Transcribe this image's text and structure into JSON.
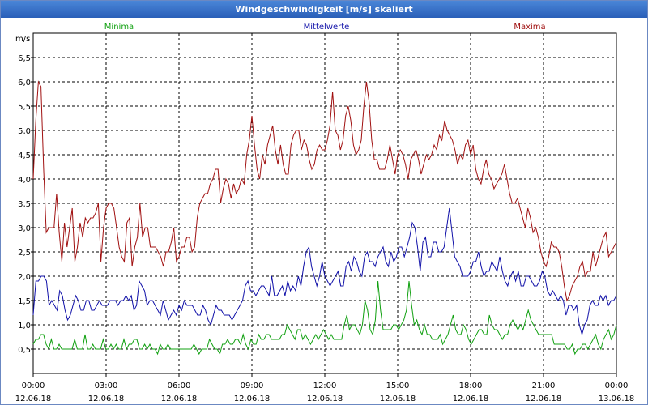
{
  "window": {
    "title": "Windgeschwindigkeit [m/s] skaliert"
  },
  "chart_data": {
    "type": "line",
    "title": "Windgeschwindigkeit [m/s] skaliert",
    "ylabel": "m/s",
    "xlabel": "",
    "ylim": [
      0,
      7.0
    ],
    "grid": true,
    "y_ticks": [
      "0,5",
      "1,0",
      "1,5",
      "2,0",
      "2,5",
      "3,0",
      "3,5",
      "4,0",
      "4,5",
      "5,0",
      "5,5",
      "6,0",
      "6,5"
    ],
    "x_ticks": [
      {
        "time": "00:00",
        "date": "12.06.18"
      },
      {
        "time": "03:00",
        "date": "12.06.18"
      },
      {
        "time": "06:00",
        "date": "12.06.18"
      },
      {
        "time": "09:00",
        "date": "12.06.18"
      },
      {
        "time": "12:00",
        "date": "12.06.18"
      },
      {
        "time": "15:00",
        "date": "12.06.18"
      },
      {
        "time": "18:00",
        "date": "12.06.18"
      },
      {
        "time": "21:00",
        "date": "12.06.18"
      },
      {
        "time": "00:00",
        "date": "13.06.18"
      }
    ],
    "x_range_hours": [
      0,
      24
    ],
    "series": [
      {
        "name": "Minima",
        "color": "#10a010",
        "values": [
          0.6,
          0.7,
          0.7,
          0.8,
          0.8,
          0.6,
          0.5,
          0.7,
          0.5,
          0.5,
          0.6,
          0.5,
          0.5,
          0.5,
          0.5,
          0.5,
          0.7,
          0.5,
          0.5,
          0.5,
          0.8,
          0.5,
          0.5,
          0.6,
          0.5,
          0.5,
          0.5,
          0.7,
          0.5,
          0.5,
          0.6,
          0.5,
          0.6,
          0.5,
          0.5,
          0.7,
          0.5,
          0.6,
          0.6,
          0.7,
          0.7,
          0.5,
          0.5,
          0.6,
          0.5,
          0.6,
          0.5,
          0.5,
          0.4,
          0.6,
          0.5,
          0.5,
          0.6,
          0.5,
          0.5,
          0.5,
          0.5,
          0.5,
          0.5,
          0.5,
          0.5,
          0.5,
          0.6,
          0.5,
          0.4,
          0.5,
          0.5,
          0.5,
          0.7,
          0.6,
          0.5,
          0.5,
          0.4,
          0.6,
          0.6,
          0.7,
          0.6,
          0.6,
          0.7,
          0.7,
          0.6,
          0.8,
          0.6,
          0.5,
          0.7,
          0.6,
          0.6,
          0.8,
          0.7,
          0.7,
          0.8,
          0.8,
          0.7,
          0.7,
          0.7,
          0.7,
          0.8,
          0.8,
          1.0,
          0.9,
          0.8,
          0.7,
          0.9,
          0.9,
          0.7,
          0.8,
          0.7,
          0.6,
          0.7,
          0.8,
          0.7,
          0.8,
          0.9,
          0.8,
          0.7,
          0.8,
          0.7,
          0.7,
          0.7,
          0.7,
          1.0,
          1.2,
          0.9,
          1.0,
          1.0,
          0.9,
          0.8,
          1.0,
          1.5,
          1.3,
          0.9,
          0.8,
          1.1,
          1.9,
          1.3,
          0.9,
          0.9,
          0.9,
          0.9,
          1.0,
          1.0,
          0.9,
          1.0,
          1.1,
          1.3,
          1.9,
          1.4,
          1.0,
          1.1,
          0.9,
          0.8,
          1.0,
          0.8,
          0.8,
          0.7,
          0.7,
          0.7,
          0.8,
          0.6,
          0.7,
          0.8,
          1.0,
          1.2,
          0.9,
          0.8,
          0.8,
          1.0,
          0.9,
          0.7,
          0.6,
          0.7,
          0.8,
          0.9,
          0.9,
          0.8,
          0.8,
          1.2,
          1.0,
          0.9,
          0.9,
          0.8,
          0.7,
          0.8,
          0.8,
          1.0,
          1.1,
          1.0,
          0.9,
          1.0,
          0.9,
          1.1,
          1.3,
          1.1,
          1.0,
          0.9,
          0.8,
          0.8,
          0.8,
          0.8,
          0.8,
          0.8,
          0.6,
          0.6,
          0.6,
          0.6,
          0.6,
          0.5,
          0.5,
          0.6,
          0.4,
          0.5,
          0.5,
          0.6,
          0.6,
          0.5,
          0.6,
          0.7,
          0.8,
          0.6,
          0.5,
          0.7,
          0.8,
          0.9,
          0.7,
          0.8,
          1.0
        ]
      },
      {
        "name": "Mittelwerte",
        "color": "#1010a8",
        "values": [
          1.2,
          1.9,
          1.9,
          2.0,
          2.0,
          1.9,
          1.4,
          1.5,
          1.4,
          1.3,
          1.7,
          1.6,
          1.3,
          1.1,
          1.2,
          1.4,
          1.6,
          1.5,
          1.3,
          1.3,
          1.5,
          1.5,
          1.3,
          1.3,
          1.4,
          1.5,
          1.4,
          1.4,
          1.4,
          1.5,
          1.5,
          1.5,
          1.4,
          1.5,
          1.5,
          1.6,
          1.5,
          1.6,
          1.3,
          1.4,
          1.9,
          1.8,
          1.7,
          1.4,
          1.5,
          1.5,
          1.4,
          1.3,
          1.2,
          1.5,
          1.3,
          1.1,
          1.2,
          1.3,
          1.2,
          1.4,
          1.3,
          1.5,
          1.4,
          1.4,
          1.4,
          1.3,
          1.2,
          1.2,
          1.4,
          1.3,
          1.1,
          1.0,
          1.2,
          1.4,
          1.3,
          1.3,
          1.2,
          1.2,
          1.2,
          1.1,
          1.2,
          1.3,
          1.4,
          1.5,
          1.8,
          1.9,
          1.7,
          1.7,
          1.6,
          1.7,
          1.8,
          1.8,
          1.7,
          1.6,
          2.0,
          1.6,
          1.6,
          1.7,
          1.8,
          1.6,
          1.9,
          1.7,
          1.8,
          1.7,
          2.0,
          1.8,
          2.2,
          2.5,
          2.6,
          2.2,
          2.0,
          1.8,
          2.0,
          2.3,
          2.0,
          1.9,
          1.8,
          1.9,
          2.0,
          2.1,
          1.8,
          1.8,
          2.2,
          2.3,
          2.1,
          2.4,
          2.3,
          2.1,
          2.0,
          2.4,
          2.5,
          2.3,
          2.3,
          2.2,
          2.4,
          2.5,
          2.6,
          2.3,
          2.2,
          2.5,
          2.3,
          2.4,
          2.6,
          2.6,
          2.4,
          2.6,
          2.8,
          3.1,
          3.0,
          2.6,
          2.1,
          2.7,
          2.8,
          2.4,
          2.4,
          2.7,
          2.7,
          2.5,
          2.5,
          2.6,
          3.0,
          3.4,
          2.9,
          2.4,
          2.3,
          2.2,
          2.0,
          2.0,
          2.0,
          2.1,
          2.3,
          2.3,
          2.5,
          2.2,
          2.0,
          2.1,
          2.1,
          2.3,
          2.2,
          2.1,
          2.4,
          2.1,
          1.9,
          1.8,
          2.0,
          2.1,
          1.9,
          2.1,
          1.8,
          1.8,
          2.0,
          2.0,
          1.9,
          1.8,
          1.8,
          1.9,
          2.1,
          2.0,
          1.7,
          1.6,
          1.7,
          1.6,
          1.5,
          1.6,
          1.5,
          1.2,
          1.4,
          1.4,
          1.3,
          1.4,
          1.0,
          0.8,
          1.0,
          1.1,
          1.4,
          1.5,
          1.4,
          1.4,
          1.6,
          1.5,
          1.6,
          1.4,
          1.5,
          1.5,
          1.6
        ]
      },
      {
        "name": "Maxima",
        "color": "#a01010",
        "values": [
          4.0,
          5.2,
          6.0,
          5.9,
          4.2,
          2.9,
          3.0,
          3.0,
          3.0,
          3.7,
          2.9,
          2.3,
          3.1,
          2.6,
          3.0,
          3.4,
          2.3,
          2.6,
          3.1,
          2.8,
          3.2,
          3.1,
          3.2,
          3.2,
          3.3,
          3.5,
          2.3,
          3.0,
          3.4,
          3.5,
          3.5,
          3.4,
          3.0,
          2.6,
          2.4,
          2.3,
          3.1,
          3.2,
          2.2,
          2.6,
          2.8,
          3.5,
          2.8,
          3.0,
          3.0,
          2.6,
          2.6,
          2.6,
          2.5,
          2.4,
          2.2,
          2.5,
          2.5,
          2.7,
          3.0,
          2.3,
          2.4,
          2.6,
          2.6,
          2.8,
          2.8,
          2.5,
          2.6,
          3.2,
          3.5,
          3.6,
          3.7,
          3.7,
          3.9,
          4.0,
          4.2,
          4.2,
          3.5,
          3.8,
          4.0,
          3.9,
          3.6,
          3.9,
          3.7,
          3.8,
          4.0,
          3.9,
          4.5,
          4.8,
          5.3,
          4.7,
          4.2,
          4.0,
          4.5,
          4.3,
          4.7,
          4.9,
          5.1,
          4.6,
          4.3,
          4.7,
          4.3,
          4.1,
          4.1,
          4.7,
          4.9,
          5.0,
          5.0,
          4.6,
          4.8,
          4.7,
          4.4,
          4.2,
          4.3,
          4.6,
          4.7,
          4.6,
          4.6,
          4.8,
          5.1,
          5.8,
          5.0,
          4.9,
          4.6,
          4.8,
          5.3,
          5.5,
          5.2,
          4.7,
          4.5,
          4.6,
          4.8,
          5.5,
          6.0,
          5.6,
          4.8,
          4.4,
          4.4,
          4.2,
          4.2,
          4.2,
          4.4,
          4.7,
          4.4,
          4.1,
          4.5,
          4.6,
          4.5,
          4.3,
          4.0,
          4.4,
          4.5,
          4.6,
          4.4,
          4.1,
          4.3,
          4.5,
          4.4,
          4.5,
          4.7,
          4.6,
          4.9,
          4.8,
          5.2,
          5.0,
          4.9,
          4.8,
          4.6,
          4.3,
          4.5,
          4.4,
          4.7,
          4.8,
          4.5,
          4.7,
          4.2,
          4.0,
          3.9,
          4.2,
          4.4,
          4.1,
          4.0,
          3.8,
          3.9,
          4.0,
          4.1,
          4.3,
          4.0,
          3.7,
          3.5,
          3.5,
          3.6,
          3.4,
          3.2,
          3.0,
          3.4,
          3.2,
          2.9,
          3.0,
          2.8,
          2.5,
          2.3,
          2.2,
          2.4,
          2.7,
          2.6,
          2.6,
          2.5,
          2.2,
          1.8,
          1.5,
          1.6,
          1.8,
          1.9,
          2.0,
          2.2,
          2.3,
          2.0,
          2.1,
          2.1,
          2.5,
          2.2,
          2.4,
          2.6,
          2.8,
          2.9,
          2.4,
          2.5,
          2.6,
          2.7
        ]
      }
    ]
  }
}
